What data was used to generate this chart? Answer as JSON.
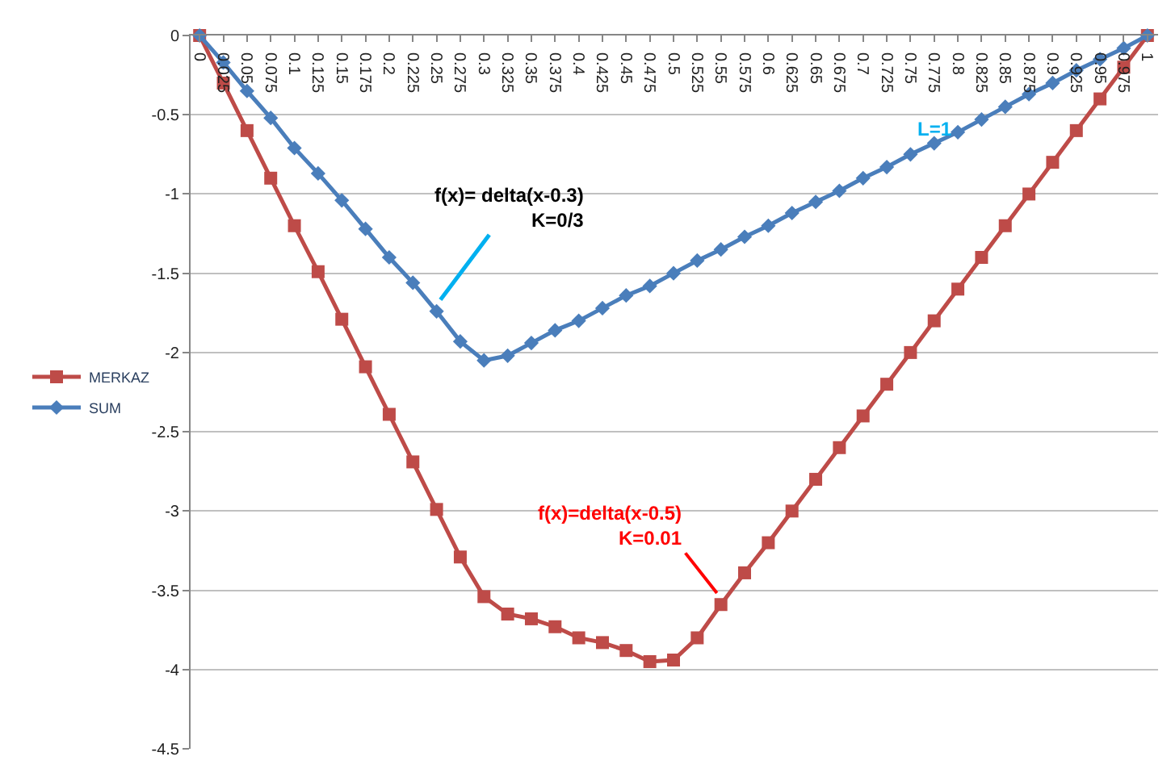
{
  "chart_data": {
    "type": "line",
    "categories": [
      "0",
      "0.025",
      "0.05",
      "0.075",
      "0.1",
      "0.125",
      "0.15",
      "0.175",
      "0.2",
      "0.225",
      "0.25",
      "0.275",
      "0.3",
      "0.325",
      "0.35",
      "0.375",
      "0.4",
      "0.425",
      "0.45",
      "0.475",
      "0.5",
      "0.525",
      "0.55",
      "0.575",
      "0.6",
      "0.625",
      "0.65",
      "0.675",
      "0.7",
      "0.725",
      "0.75",
      "0.775",
      "0.8",
      "0.825",
      "0.85",
      "0.875",
      "0.9",
      "0.925",
      "0.95",
      "0.975",
      "1"
    ],
    "series": [
      {
        "name": "MERKAZ",
        "color": "#be4b48",
        "marker": "square",
        "values": [
          0,
          -0.3,
          -0.6,
          -0.9,
          -1.2,
          -1.49,
          -1.79,
          -2.09,
          -2.39,
          -2.69,
          -2.99,
          -3.29,
          -3.54,
          -3.65,
          -3.68,
          -3.73,
          -3.8,
          -3.83,
          -3.88,
          -3.95,
          -3.94,
          -3.8,
          -3.59,
          -3.39,
          -3.2,
          -3.0,
          -2.8,
          -2.6,
          -2.4,
          -2.2,
          -2.0,
          -1.8,
          -1.6,
          -1.4,
          -1.2,
          -1.0,
          -0.8,
          -0.6,
          -0.4,
          -0.2,
          0
        ]
      },
      {
        "name": "SUM",
        "color": "#4a7ebb",
        "marker": "diamond",
        "values": [
          0,
          -0.17,
          -0.35,
          -0.52,
          -0.71,
          -0.87,
          -1.04,
          -1.22,
          -1.4,
          -1.56,
          -1.74,
          -1.93,
          -2.05,
          -2.02,
          -1.94,
          -1.86,
          -1.8,
          -1.72,
          -1.64,
          -1.58,
          -1.5,
          -1.42,
          -1.35,
          -1.27,
          -1.2,
          -1.12,
          -1.05,
          -0.98,
          -0.9,
          -0.83,
          -0.75,
          -0.68,
          -0.61,
          -0.53,
          -0.45,
          -0.37,
          -0.3,
          -0.22,
          -0.15,
          -0.08,
          0
        ]
      }
    ],
    "ylim": [
      -4.5,
      0
    ],
    "yticks": [
      0,
      -0.5,
      -1,
      -1.5,
      -2,
      -2.5,
      -3,
      -3.5,
      -4,
      -4.5
    ],
    "grid": "y",
    "legend": "left",
    "annotations": [
      {
        "text": "f(x)= delta(x-0.3)\nK=0/3",
        "x": "0.25",
        "y": -1.7
      },
      "L=1",
      {
        "text": "f(x)=delta(x-0.5)\nK=0.01",
        "x": "0.55",
        "y": -3.55
      }
    ]
  }
}
